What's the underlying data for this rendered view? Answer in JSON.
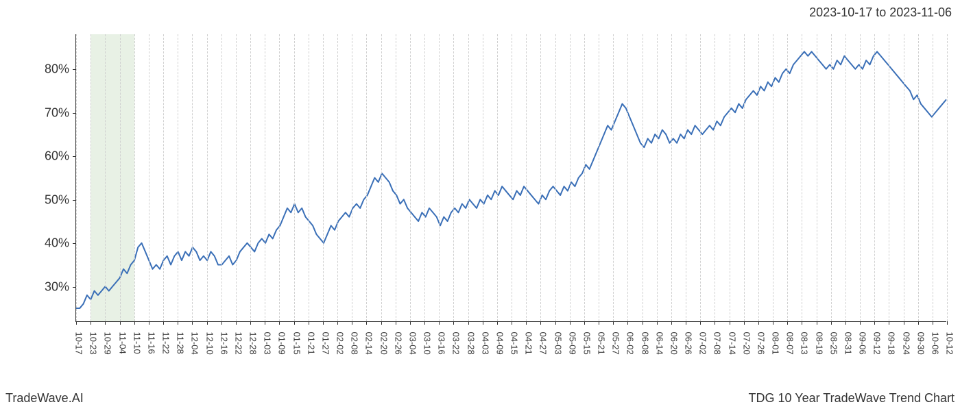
{
  "header": {
    "date_range": "2023-10-17 to 2023-11-06"
  },
  "footer": {
    "brand": "TradeWave.AI",
    "chart_title": "TDG 10 Year TradeWave Trend Chart"
  },
  "chart": {
    "type": "line",
    "background_color": "#ffffff",
    "axis_color": "#333333",
    "grid_color": "#d0d0d0",
    "grid_style": "dashed",
    "line_color": "#3a6fb7",
    "line_width": 2,
    "highlight_band": {
      "color": "#d9e8d4",
      "opacity": 0.6,
      "x_start_index": 1,
      "x_end_index": 4
    },
    "y_axis": {
      "min": 22,
      "max": 88,
      "ticks": [
        30,
        40,
        50,
        60,
        70,
        80
      ],
      "suffix": "%",
      "label_fontsize": 18
    },
    "x_axis": {
      "label_fontsize": 13,
      "label_rotation": 90,
      "labels": [
        "10-17",
        "10-23",
        "10-29",
        "11-04",
        "11-10",
        "11-16",
        "11-22",
        "11-28",
        "12-04",
        "12-10",
        "12-16",
        "12-22",
        "12-28",
        "01-03",
        "01-09",
        "01-15",
        "01-21",
        "01-27",
        "02-02",
        "02-08",
        "02-14",
        "02-20",
        "02-26",
        "03-04",
        "03-10",
        "03-16",
        "03-22",
        "03-28",
        "04-03",
        "04-09",
        "04-15",
        "04-21",
        "04-27",
        "05-03",
        "05-09",
        "05-15",
        "05-21",
        "05-27",
        "06-02",
        "06-08",
        "06-14",
        "06-20",
        "06-26",
        "07-02",
        "07-08",
        "07-14",
        "07-20",
        "07-26",
        "08-01",
        "08-07",
        "08-13",
        "08-19",
        "08-25",
        "08-31",
        "09-06",
        "09-12",
        "09-18",
        "09-24",
        "09-30",
        "10-06",
        "10-12"
      ]
    },
    "series": {
      "values": [
        25,
        25,
        26,
        28,
        27,
        29,
        28,
        29,
        30,
        29,
        30,
        31,
        32,
        34,
        33,
        35,
        36,
        39,
        40,
        38,
        36,
        34,
        35,
        34,
        36,
        37,
        35,
        37,
        38,
        36,
        38,
        37,
        39,
        38,
        36,
        37,
        36,
        38,
        37,
        35,
        35,
        36,
        37,
        35,
        36,
        38,
        39,
        40,
        39,
        38,
        40,
        41,
        40,
        42,
        41,
        43,
        44,
        46,
        48,
        47,
        49,
        47,
        48,
        46,
        45,
        44,
        42,
        41,
        40,
        42,
        44,
        43,
        45,
        46,
        47,
        46,
        48,
        49,
        48,
        50,
        51,
        53,
        55,
        54,
        56,
        55,
        54,
        52,
        51,
        49,
        50,
        48,
        47,
        46,
        45,
        47,
        46,
        48,
        47,
        46,
        44,
        46,
        45,
        47,
        48,
        47,
        49,
        48,
        50,
        49,
        48,
        50,
        49,
        51,
        50,
        52,
        51,
        53,
        52,
        51,
        50,
        52,
        51,
        53,
        52,
        51,
        50,
        49,
        51,
        50,
        52,
        53,
        52,
        51,
        53,
        52,
        54,
        53,
        55,
        56,
        58,
        57,
        59,
        61,
        63,
        65,
        67,
        66,
        68,
        70,
        72,
        71,
        69,
        67,
        65,
        63,
        62,
        64,
        63,
        65,
        64,
        66,
        65,
        63,
        64,
        63,
        65,
        64,
        66,
        65,
        67,
        66,
        65,
        66,
        67,
        66,
        68,
        67,
        69,
        70,
        71,
        70,
        72,
        71,
        73,
        74,
        75,
        74,
        76,
        75,
        77,
        76,
        78,
        77,
        79,
        80,
        79,
        81,
        82,
        83,
        84,
        83,
        84,
        83,
        82,
        81,
        80,
        81,
        80,
        82,
        81,
        83,
        82,
        81,
        80,
        81,
        80,
        82,
        81,
        83,
        84,
        83,
        82,
        81,
        80,
        79,
        78,
        77,
        76,
        75,
        73,
        74,
        72,
        71,
        70,
        69,
        70,
        71,
        72,
        73
      ]
    }
  }
}
